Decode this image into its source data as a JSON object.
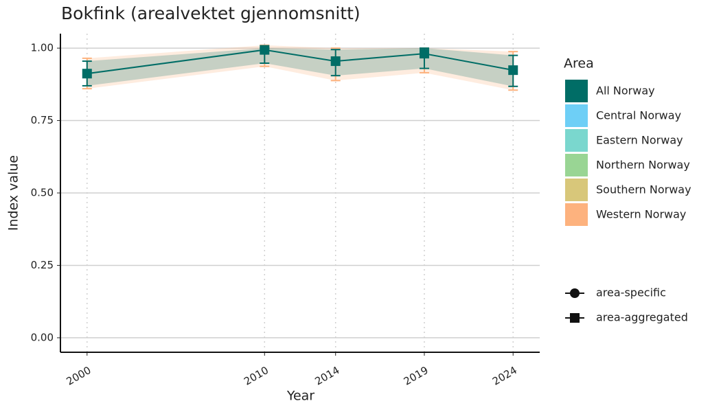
{
  "chart_data": {
    "type": "line",
    "title": "Bokfink (arealvektet gjennomsnitt)",
    "x_label": "Year",
    "y_label": "Index value",
    "x": [
      2000,
      2010,
      2014,
      2019,
      2024
    ],
    "xlim": [
      1998.5,
      2025.5
    ],
    "ylim": [
      -0.05,
      1.05
    ],
    "yticks": [
      {
        "value": 0,
        "label": "0.00"
      },
      {
        "value": 0.25,
        "label": "0.25"
      },
      {
        "value": 0.5,
        "label": "0.50"
      },
      {
        "value": 0.75,
        "label": "0.75"
      },
      {
        "value": 1,
        "label": "1.00"
      }
    ],
    "grid": true,
    "legend_title": "Area",
    "series": [
      {
        "name": "All Norway",
        "color": "#006D66",
        "values": [
          0.912,
          0.994,
          0.955,
          0.981,
          0.924
        ],
        "lower": [
          0.87,
          0.948,
          0.905,
          0.93,
          0.868
        ],
        "upper": [
          0.955,
          1.0,
          0.995,
          1.0,
          0.975
        ]
      },
      {
        "name": "Central Norway",
        "color": "#6ECFF6"
      },
      {
        "name": "Eastern Norway",
        "color": "#7AD7CE"
      },
      {
        "name": "Northern Norway",
        "color": "#99D594"
      },
      {
        "name": "Southern Norway",
        "color": "#D8C77A"
      },
      {
        "name": "Western Norway",
        "color": "#FDB27E",
        "lower": [
          0.86,
          0.937,
          0.888,
          0.915,
          0.855
        ],
        "upper": [
          0.965,
          1.01,
          1.0,
          1.0,
          0.988
        ]
      }
    ],
    "shape_legend": [
      "area-specific",
      "area-aggregated"
    ]
  }
}
